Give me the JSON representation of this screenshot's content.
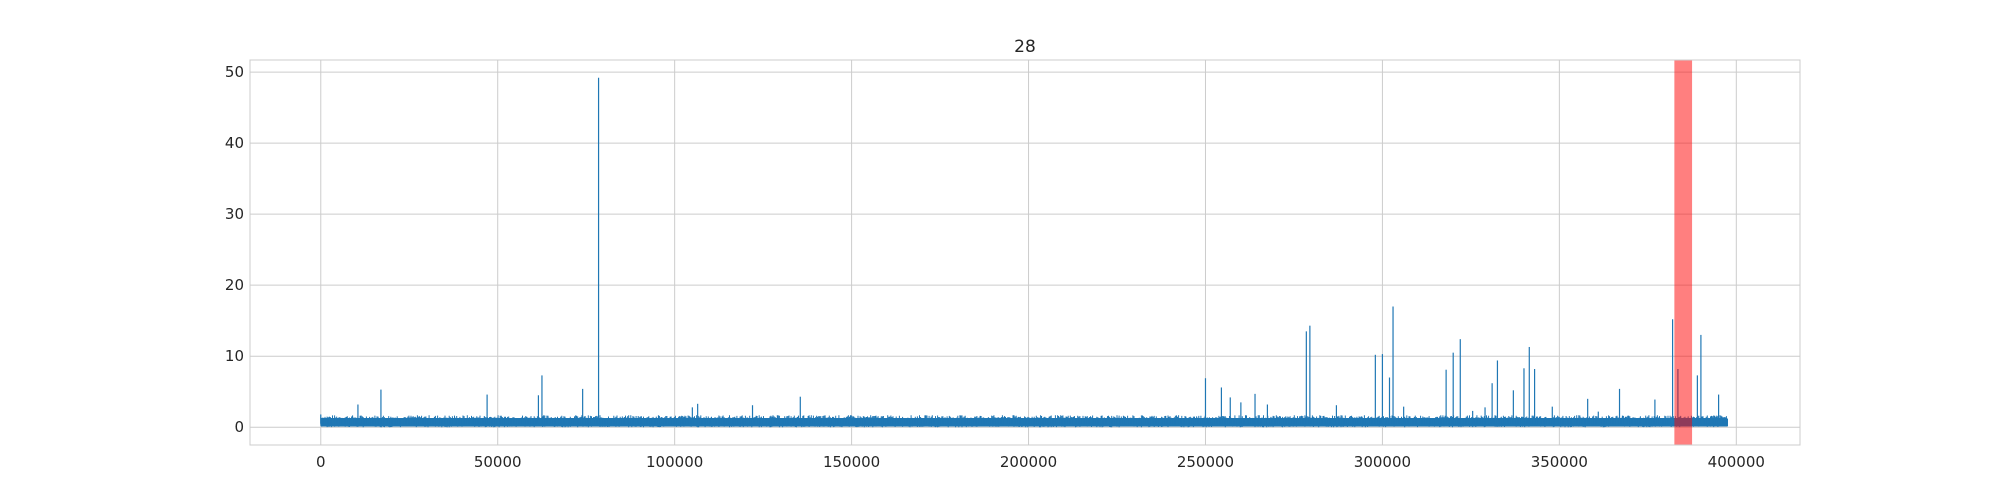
{
  "chart_data": {
    "type": "line",
    "title": "28",
    "xlabel": "",
    "ylabel": "",
    "xlim": [
      -20000,
      418000
    ],
    "ylim": [
      -2.5,
      51.7
    ],
    "x_ticks": [
      0,
      50000,
      100000,
      150000,
      200000,
      250000,
      300000,
      350000,
      400000
    ],
    "x_tick_labels": [
      "0",
      "50000",
      "100000",
      "150000",
      "200000",
      "250000",
      "300000",
      "350000",
      "400000"
    ],
    "y_ticks": [
      0,
      10,
      20,
      30,
      40,
      50
    ],
    "y_tick_labels": [
      "0",
      "10",
      "20",
      "30",
      "40",
      "50"
    ],
    "grid": true,
    "series_color": "#1f77b4",
    "highlight": {
      "x_start": 382500,
      "x_end": 387500,
      "color": "#ff0000",
      "opacity": 0.5
    },
    "baseline": {
      "x_start": 0,
      "x_end": 397500,
      "low": 0.1,
      "high": 1.3
    },
    "spikes": [
      {
        "x": 0,
        "y": 1.8
      },
      {
        "x": 10500,
        "y": 3.2
      },
      {
        "x": 17000,
        "y": 5.3
      },
      {
        "x": 47000,
        "y": 4.6
      },
      {
        "x": 61500,
        "y": 4.5
      },
      {
        "x": 62500,
        "y": 7.3
      },
      {
        "x": 74000,
        "y": 5.4
      },
      {
        "x": 78500,
        "y": 49.2
      },
      {
        "x": 105000,
        "y": 2.8
      },
      {
        "x": 106500,
        "y": 3.3
      },
      {
        "x": 122000,
        "y": 3.1
      },
      {
        "x": 135500,
        "y": 4.3
      },
      {
        "x": 250000,
        "y": 6.9
      },
      {
        "x": 254500,
        "y": 5.6
      },
      {
        "x": 257000,
        "y": 4.2
      },
      {
        "x": 260000,
        "y": 3.5
      },
      {
        "x": 264000,
        "y": 4.7
      },
      {
        "x": 267500,
        "y": 3.2
      },
      {
        "x": 278500,
        "y": 13.5
      },
      {
        "x": 279500,
        "y": 14.3
      },
      {
        "x": 287000,
        "y": 3.1
      },
      {
        "x": 298000,
        "y": 10.2
      },
      {
        "x": 300000,
        "y": 10.3
      },
      {
        "x": 302000,
        "y": 7.0
      },
      {
        "x": 303000,
        "y": 17.0
      },
      {
        "x": 306000,
        "y": 2.9
      },
      {
        "x": 318000,
        "y": 8.1
      },
      {
        "x": 320000,
        "y": 10.5
      },
      {
        "x": 322000,
        "y": 12.4
      },
      {
        "x": 325500,
        "y": 2.3
      },
      {
        "x": 329000,
        "y": 2.8
      },
      {
        "x": 331000,
        "y": 6.2
      },
      {
        "x": 332500,
        "y": 9.4
      },
      {
        "x": 337000,
        "y": 5.2
      },
      {
        "x": 340000,
        "y": 8.3
      },
      {
        "x": 341500,
        "y": 11.3
      },
      {
        "x": 343000,
        "y": 8.2
      },
      {
        "x": 348000,
        "y": 2.9
      },
      {
        "x": 358000,
        "y": 4.0
      },
      {
        "x": 361000,
        "y": 2.2
      },
      {
        "x": 367000,
        "y": 5.4
      },
      {
        "x": 377000,
        "y": 3.9
      },
      {
        "x": 382000,
        "y": 15.2
      },
      {
        "x": 383500,
        "y": 8.2
      },
      {
        "x": 389000,
        "y": 7.3
      },
      {
        "x": 390000,
        "y": 13.0
      },
      {
        "x": 395000,
        "y": 4.6
      }
    ]
  }
}
